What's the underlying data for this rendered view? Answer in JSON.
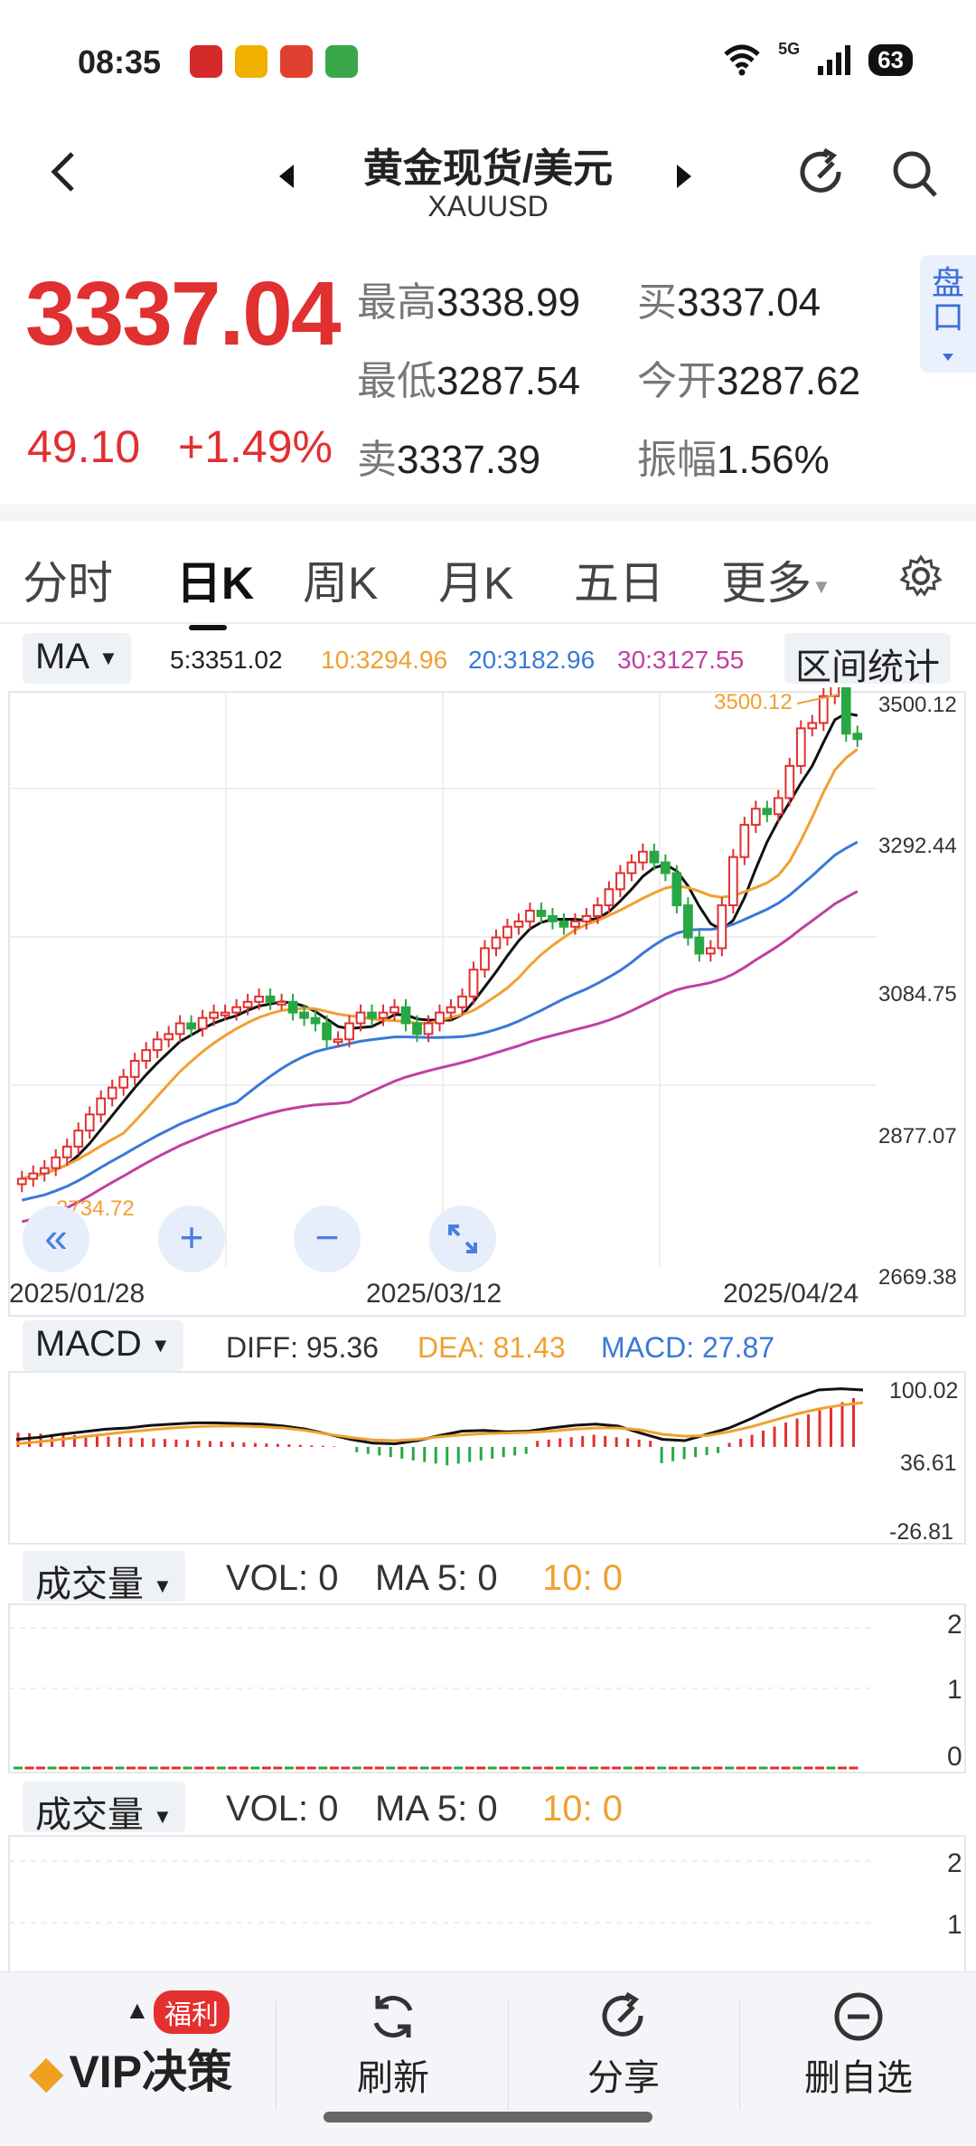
{
  "status_bar": {
    "time": "08:35",
    "network": "5G",
    "battery": "63",
    "app_icons": [
      "xuexi-app-icon",
      "weibo-app-icon",
      "red-app-icon",
      "oppo-app-icon"
    ],
    "app_colors": [
      "#d42a2a",
      "#f0b000",
      "#e04030",
      "#3aa84a"
    ]
  },
  "header": {
    "name": "黄金现货/美元",
    "symbol": "XAUUSD"
  },
  "quote": {
    "price": "3337.04",
    "change": "49.10",
    "change_pct": "+1.49%",
    "high_label": "最高",
    "high": "3338.99",
    "low_label": "最低",
    "low": "3287.54",
    "sell_label": "卖",
    "sell": "3337.39",
    "buy_label": "买",
    "buy": "3337.04",
    "open_label": "今开",
    "open": "3287.62",
    "amp_label": "振幅",
    "amp": "1.56%",
    "pankou": "盘口"
  },
  "tabs": [
    "分时",
    "日K",
    "周K",
    "月K",
    "五日",
    "更多"
  ],
  "ma_row": {
    "label": "MA",
    "ma5": "5:3351.02",
    "ma10": "10:3294.96",
    "ma20": "20:3182.96",
    "ma30": "30:3127.55",
    "range_button": "区间统计"
  },
  "kline": {
    "y_ticks": [
      "3500.12",
      "3292.44",
      "3084.75",
      "2877.07",
      "2669.38"
    ],
    "x_ticks": [
      "2025/01/28",
      "2025/03/12",
      "2025/04/24"
    ],
    "max_label": "3500.12",
    "min_label": "2734.72"
  },
  "macd_row": {
    "label": "MACD",
    "diff": "DIFF: 95.36",
    "dea": "DEA: 81.43",
    "macd": "MACD: 27.87",
    "y_ticks": [
      "100.02",
      "36.61",
      "-26.81"
    ]
  },
  "vol_panel_1": {
    "label": "成交量",
    "vol": "VOL: 0",
    "ma5": "MA 5: 0",
    "ma10": "10: 0",
    "y_ticks": [
      "2",
      "1",
      "0"
    ]
  },
  "vol_panel_2": {
    "label": "成交量",
    "vol": "VOL: 0",
    "ma5": "MA 5: 0",
    "ma10": "10: 0",
    "y_ticks": [
      "2",
      "1"
    ]
  },
  "bottom_bar": {
    "vip": "VIP决策",
    "badge": "福利",
    "refresh": "刷新",
    "share": "分享",
    "remove": "删自选"
  },
  "colors": {
    "up": "#e03030",
    "down": "#28a745",
    "ma5": "#111111",
    "ma10": "#f0a030",
    "ma20": "#3a78d8",
    "ma30": "#c040a0"
  }
}
